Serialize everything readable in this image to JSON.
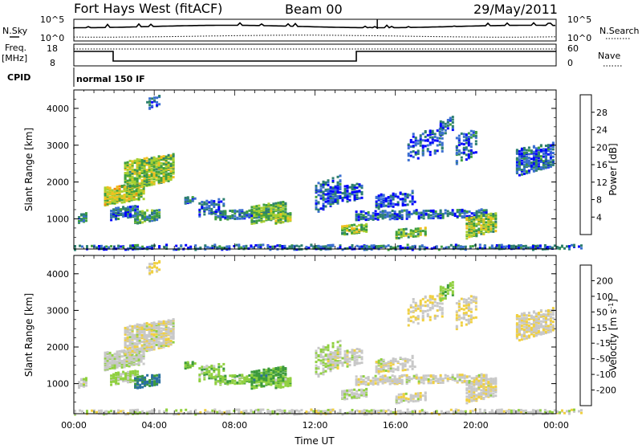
{
  "header": {
    "station": "Fort Hays West (fitACF)",
    "beam": "Beam 00",
    "date": "29/May/2011"
  },
  "top_panels": {
    "nsky_label": "N.Sky",
    "nsearch_label": "N.Search",
    "nsky_ticks": [
      "10^5",
      "10^0"
    ],
    "nsearch_ticks": [
      "10^5",
      "10^0"
    ],
    "freq_label_line1": "Freq.",
    "freq_label_line2": "[MHz]",
    "freq_ticks": [
      "18",
      "8"
    ],
    "nave_label": "Nave",
    "nave_ticks": [
      "60",
      "0"
    ],
    "cpid_label": "CPID",
    "cpid_value": "normal 150 IF"
  },
  "colors": {
    "power_scale": [
      "#0000ff",
      "#3a6fd0",
      "#2d7f6f",
      "#3f9f3f",
      "#a8d030",
      "#f0c020",
      "#f08a10",
      "#f04010",
      "#ff0000"
    ],
    "velocity_scale": [
      "#2030c0",
      "#2a6fa0",
      "#3c9a3c",
      "#90d040",
      "#c8c8c8",
      "#f0d040",
      "#f0a020",
      "#f07010",
      "#ff2010"
    ]
  },
  "chart_data": [
    {
      "type": "heatmap",
      "title": "",
      "xlabel": "Time UT",
      "ylabel": "Slant Range [km]",
      "x_ticks": [
        "00:00",
        "04:00",
        "08:00",
        "12:00",
        "16:00",
        "20:00",
        "00:00"
      ],
      "y_ticks": [
        "1000",
        "2000",
        "3000",
        "4000"
      ],
      "ylim": [
        180,
        4500
      ],
      "colorbar": {
        "label": "Power [dB]",
        "ticks": [
          "4",
          "8",
          "12",
          "16",
          "20",
          "24",
          "28"
        ],
        "range": [
          0,
          30
        ]
      }
    },
    {
      "type": "heatmap",
      "title": "",
      "xlabel": "Time UT",
      "ylabel": "Slant Range [km]",
      "x_ticks": [
        "00:00",
        "04:00",
        "08:00",
        "12:00",
        "16:00",
        "20:00",
        "00:00"
      ],
      "y_ticks": [
        "1000",
        "2000",
        "3000",
        "4000"
      ],
      "ylim": [
        180,
        4500
      ],
      "colorbar": {
        "label": "Velocity [m s",
        "label_sup": "-1",
        "label_end": "]",
        "ticks": [
          "200",
          "100",
          "50",
          "15",
          "-15",
          "-50",
          "-100",
          "-200"
        ],
        "range": [
          -250,
          250
        ]
      }
    }
  ]
}
